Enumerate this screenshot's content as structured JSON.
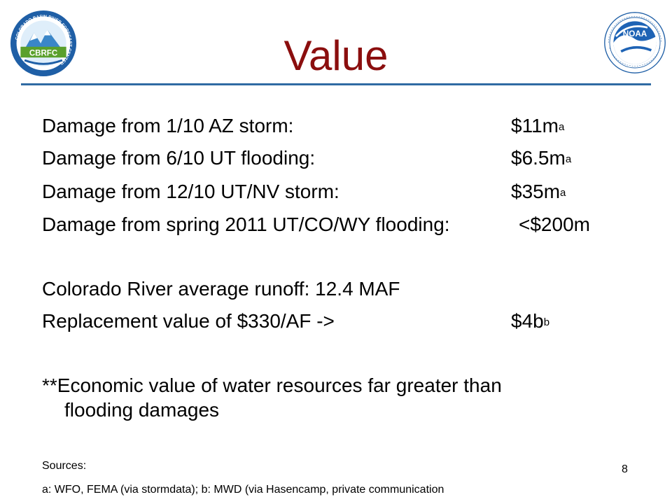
{
  "slide": {
    "title": "Value",
    "logos": {
      "left": {
        "name": "cbrfc-logo",
        "text": "CBRFC",
        "ring_text": "COLORADO BASIN RIVER FORECAST CENTER"
      },
      "right": {
        "name": "noaa-logo",
        "text": "NOAA"
      }
    },
    "lines": [
      {
        "label": "Damage from 1/10 AZ storm:",
        "value": "$11m",
        "sup": "a"
      },
      {
        "label": "Damage from 6/10 UT flooding:",
        "value": "$6.5m",
        "sup": "a"
      },
      {
        "label": "Damage from 12/10 UT/NV storm:",
        "value": "$35m",
        "sup": "a"
      },
      {
        "label": "Damage from spring 2011 UT/CO/WY flooding:",
        "value": "<$200m",
        "sup": ""
      },
      {
        "label": "Colorado River average runoff: 12.4 MAF",
        "value": "",
        "sup": ""
      },
      {
        "label": "Replacement value of $330/AF ->",
        "value": "$4b",
        "sup": "b"
      }
    ],
    "note_line1": "**Economic value of water resources far greater than",
    "note_line2": "flooding damages",
    "sources_heading": "Sources:",
    "sources_text": "a: WFO, FEMA (via stormdata); b: MWD (via Hasencamp, private communication",
    "page_number": "8",
    "colors": {
      "title": "#8b0e0e",
      "rule": "#2f6aa3"
    }
  }
}
